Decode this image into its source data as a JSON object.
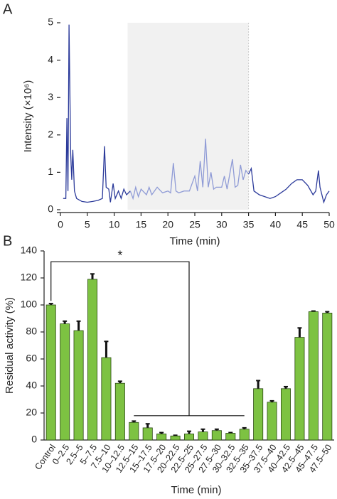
{
  "chart_data": [
    {
      "type": "line",
      "panel": "A",
      "x_label": "Time (min)",
      "y_label": "Intensity (×10⁶)",
      "xlim": [
        0,
        50
      ],
      "xticks": [
        0,
        5,
        10,
        15,
        20,
        25,
        30,
        35,
        40,
        45,
        50
      ],
      "ylim": [
        0,
        5
      ],
      "yticks": [
        0,
        1,
        2,
        3,
        4,
        5
      ],
      "shaded_region": [
        12.5,
        35
      ],
      "shaded_color": "#f1f1f1",
      "series": [
        {
          "color": "#2b3a9a",
          "x": [
            0.5,
            1,
            1.2,
            1.4,
            1.6,
            1.9,
            2.1,
            2.3,
            2.6,
            3,
            4,
            5,
            6,
            7,
            7.8,
            8.2,
            8.5,
            9,
            9.3,
            9.8,
            10.2,
            10.8,
            11.3,
            11.8,
            12.3,
            13
          ],
          "values": [
            0.3,
            0.3,
            2.45,
            0.5,
            4.95,
            1.5,
            0.8,
            1.6,
            0.5,
            0.3,
            0.22,
            0.2,
            0.22,
            0.25,
            0.3,
            1.7,
            0.6,
            0.55,
            0.2,
            0.7,
            0.3,
            0.5,
            0.3,
            0.55,
            0.4,
            0.5
          ]
        },
        {
          "color": "#8f9bd6",
          "x": [
            13,
            13.5,
            14,
            14.5,
            15,
            16,
            16.5,
            17,
            18,
            19,
            20,
            20.5,
            21,
            21.5,
            22,
            23,
            24,
            25,
            25.5,
            26,
            26.5,
            27,
            27.5,
            28,
            28.5,
            29,
            30,
            30.5,
            31,
            32,
            32.5,
            33,
            33.5,
            34,
            34.5,
            35
          ],
          "values": [
            0.5,
            0.3,
            0.6,
            0.35,
            0.55,
            0.4,
            0.6,
            0.4,
            0.6,
            0.45,
            0.5,
            0.45,
            1.25,
            0.5,
            0.45,
            0.5,
            0.5,
            0.9,
            0.5,
            1.3,
            0.6,
            1.9,
            0.6,
            1.0,
            0.55,
            0.6,
            0.6,
            0.9,
            0.55,
            1.35,
            0.6,
            0.65,
            1.2,
            0.8,
            1.05,
            0.95
          ]
        },
        {
          "color": "#2b3a9a",
          "x": [
            35,
            35.5,
            36,
            37,
            38,
            39,
            40,
            41,
            42,
            43,
            44,
            45,
            46,
            47,
            47.5,
            48,
            48.3,
            49,
            49.5,
            50
          ],
          "values": [
            0.95,
            1.1,
            0.5,
            0.4,
            0.35,
            0.3,
            0.35,
            0.45,
            0.55,
            0.7,
            0.8,
            0.8,
            0.65,
            0.4,
            0.5,
            1.05,
            0.6,
            0.2,
            0.4,
            0.5
          ]
        }
      ]
    },
    {
      "type": "bar",
      "panel": "B",
      "x_label": "Time (min)",
      "y_label": "Residual activity (%)",
      "annotation": "*",
      "color": "#7dc242",
      "categories": [
        "Control",
        "0–2.5",
        "2.5–5",
        "5–7.5",
        "7.5–10",
        "10–12.5",
        "12.5–15",
        "15–17.5",
        "17.5–20",
        "20–22.5",
        "22.5–25",
        "25–27.5",
        "27.5–30",
        "30–32.5",
        "32.5–35",
        "35–37.5",
        "37.5–40",
        "40–42.5",
        "42.5–45",
        "45–47.5",
        "47.5–50"
      ],
      "values": [
        100,
        86,
        81,
        119,
        61,
        42,
        13,
        9,
        4.5,
        3,
        4.5,
        6,
        7,
        5,
        8,
        38,
        28,
        38,
        76,
        95,
        94
      ],
      "errors": [
        1,
        2,
        7,
        4,
        12,
        1.5,
        1,
        3,
        1,
        0.5,
        2,
        2,
        1,
        0.5,
        1,
        6,
        1,
        1.5,
        7,
        0.5,
        1
      ],
      "ylim": [
        0,
        140
      ],
      "yticks": [
        0,
        20,
        40,
        60,
        80,
        100,
        120,
        140
      ]
    }
  ]
}
